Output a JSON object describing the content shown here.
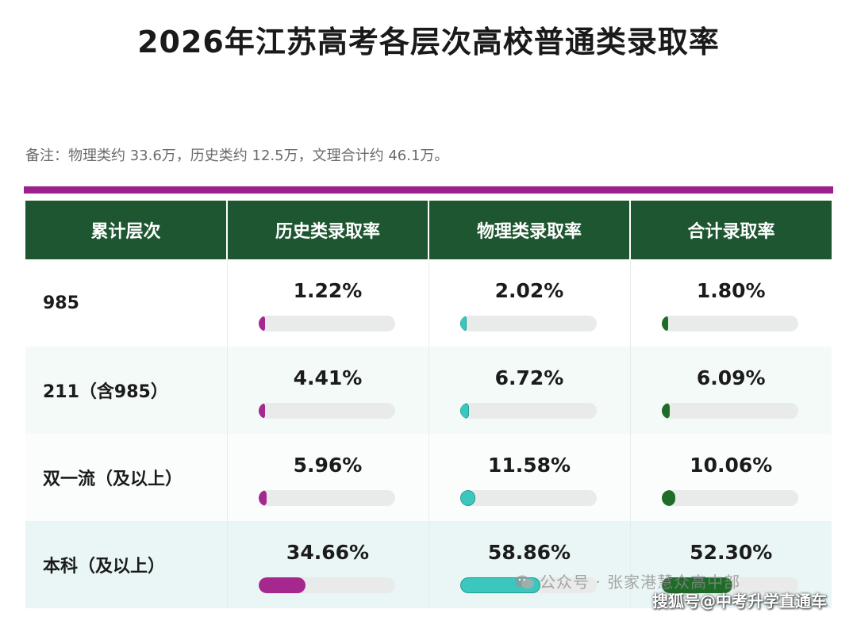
{
  "title": "2026年江苏高考各层次高校普通类录取率",
  "note": "备注：物理类约 33.6万，历史类约 12.5万，文理合计约 46.1万。",
  "colors": {
    "accent_bar": "#9b1f8c",
    "header_bg": "#1e5631",
    "history_bar": "#a6288f",
    "physics_bar": "#3bc7bd",
    "total_bar": "#1f6b28"
  },
  "table": {
    "headers": [
      "累计层次",
      "历史类录取率",
      "物理类录取率",
      "合计录取率"
    ],
    "rows": [
      {
        "level": "985",
        "history": "1.22%",
        "physics": "2.02%",
        "total": "1.80%"
      },
      {
        "level": "211（含985）",
        "history": "4.41%",
        "physics": "6.72%",
        "total": "6.09%"
      },
      {
        "level": "双一流（及以上）",
        "history": "5.96%",
        "physics": "11.58%",
        "total": "10.06%"
      },
      {
        "level": "本科（及以上）",
        "history": "34.66%",
        "physics": "58.86%",
        "total": "52.30%"
      }
    ]
  },
  "watermarks": {
    "wechat_account": "公众号 · 张家港慧众高中部",
    "sohu_account": "搜狐号@中考升学直通车",
    "wechat_icon": "wechat-icon"
  }
}
